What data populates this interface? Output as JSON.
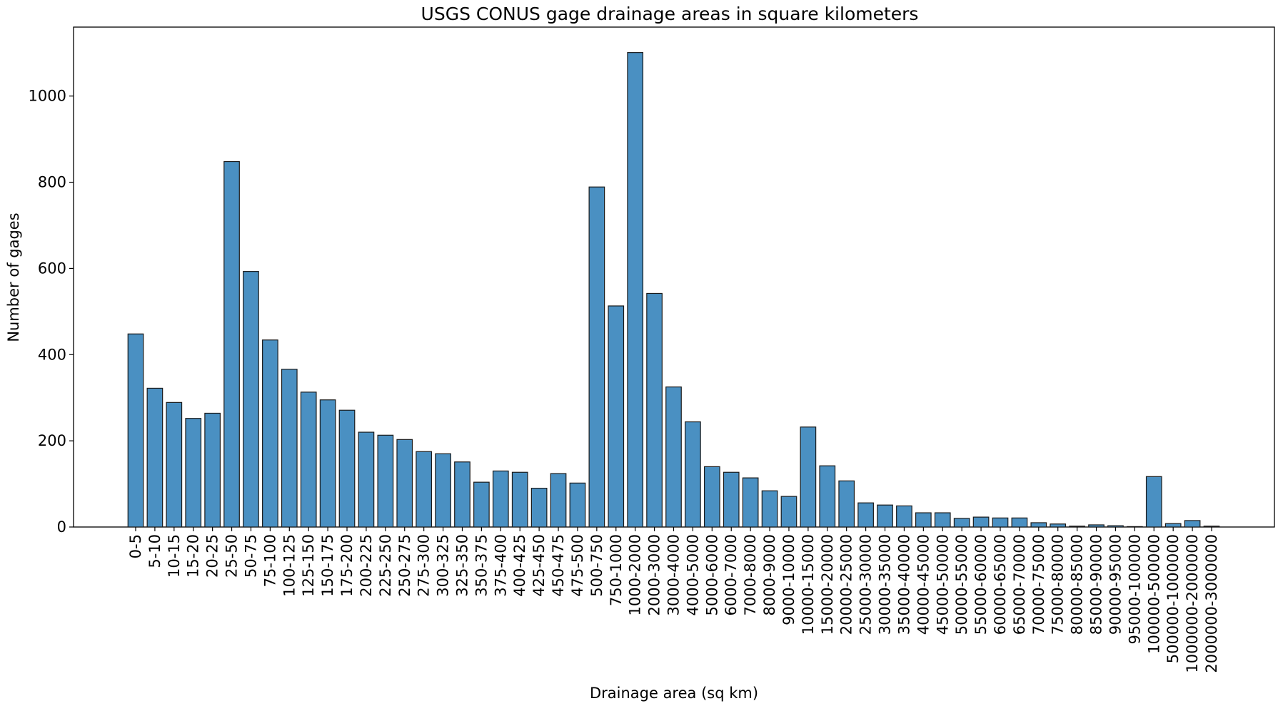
{
  "chart_data": {
    "type": "bar",
    "title": "USGS CONUS gage drainage areas in square kilometers",
    "xlabel": "Drainage area (sq km)",
    "ylabel": "Number of gages",
    "ylim": [
      0,
      1160
    ],
    "yticks": [
      0,
      200,
      400,
      600,
      800,
      1000
    ],
    "grid": false,
    "legend": "none",
    "bar_color": "#4a90c2",
    "edge_color": "#1a1a1a",
    "categories": [
      "0-5",
      "5-10",
      "10-15",
      "15-20",
      "20-25",
      "25-50",
      "50-75",
      "75-100",
      "100-125",
      "125-150",
      "150-175",
      "175-200",
      "200-225",
      "225-250",
      "250-275",
      "275-300",
      "300-325",
      "325-350",
      "350-375",
      "375-400",
      "400-425",
      "425-450",
      "450-475",
      "475-500",
      "500-750",
      "750-1000",
      "1000-2000",
      "2000-3000",
      "3000-4000",
      "4000-5000",
      "5000-6000",
      "6000-7000",
      "7000-8000",
      "8000-9000",
      "9000-10000",
      "10000-15000",
      "15000-20000",
      "20000-25000",
      "25000-30000",
      "30000-35000",
      "35000-40000",
      "40000-45000",
      "45000-50000",
      "50000-55000",
      "55000-60000",
      "60000-65000",
      "65000-70000",
      "70000-75000",
      "75000-80000",
      "80000-85000",
      "85000-90000",
      "90000-95000",
      "95000-100000",
      "100000-500000",
      "500000-1000000",
      "1000000-2000000",
      "2000000-3000000"
    ],
    "values": [
      448,
      322,
      289,
      252,
      264,
      848,
      593,
      434,
      366,
      313,
      295,
      271,
      220,
      213,
      203,
      175,
      170,
      151,
      104,
      130,
      127,
      90,
      124,
      102,
      789,
      513,
      1101,
      542,
      325,
      244,
      140,
      127,
      114,
      84,
      71,
      232,
      142,
      107,
      56,
      51,
      49,
      33,
      33,
      20,
      23,
      21,
      21,
      10,
      7,
      2,
      5,
      3,
      1,
      117,
      8,
      15,
      2
    ]
  }
}
